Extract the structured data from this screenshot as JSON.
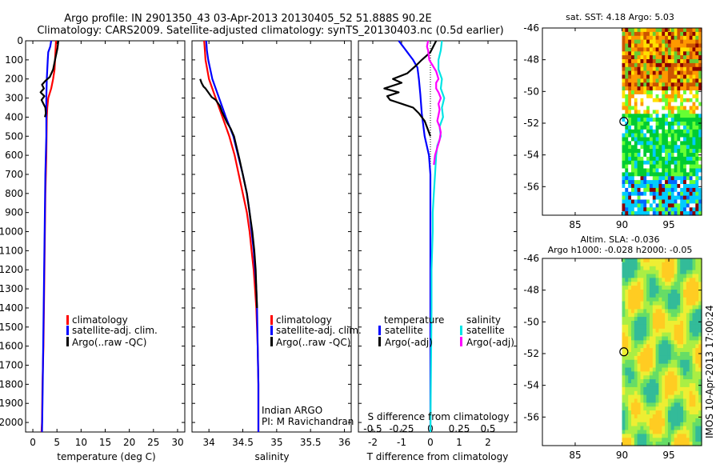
{
  "header": {
    "title_line1": "Argo profile: IN 2901350_43 03-Apr-2013 20130405_52 51.888S 90.2E",
    "title_line2": "Climatology: CARS2009. Satellite-adjusted climatology: synTS_20130403.nc (0.5d earlier)"
  },
  "colors": {
    "climatology": "#ff0000",
    "satellite": "#0000ff",
    "argo": "#000000",
    "salinity_satellite": "#00e5e5",
    "salinity_argo": "#ff00ff"
  },
  "chart_data": [
    {
      "type": "line",
      "id": "temperature",
      "xlabel": "temperature (deg C)",
      "xlim": [
        -1.5,
        31.5
      ],
      "xticks": [
        0,
        5,
        10,
        15,
        20,
        25,
        30
      ],
      "ylim": [
        0,
        2050
      ],
      "yticks": [
        0,
        100,
        200,
        300,
        400,
        500,
        600,
        700,
        800,
        900,
        1000,
        1100,
        1200,
        1300,
        1400,
        1500,
        1600,
        1700,
        1800,
        1900,
        2000
      ],
      "legend": [
        "climatology",
        "satellite-adj. clim.",
        "Argo(..raw -QC)"
      ],
      "series": [
        {
          "name": "climatology",
          "color": "#ff0000",
          "points": [
            [
              4.8,
              0
            ],
            [
              4.7,
              50
            ],
            [
              4.6,
              100
            ],
            [
              4.5,
              150
            ],
            [
              4.2,
              200
            ],
            [
              3.8,
              250
            ],
            [
              3.2,
              300
            ],
            [
              3.0,
              350
            ],
            [
              2.9,
              400
            ],
            [
              2.8,
              600
            ],
            [
              2.6,
              800
            ],
            [
              2.5,
              1000
            ],
            [
              2.4,
              1200
            ],
            [
              2.3,
              1400
            ],
            [
              2.2,
              1600
            ],
            [
              2.0,
              1800
            ],
            [
              1.9,
              2000
            ],
            [
              1.8,
              2050
            ]
          ]
        },
        {
          "name": "satellite-adj. clim.",
          "color": "#0000ff",
          "points": [
            [
              3.8,
              0
            ],
            [
              3.6,
              30
            ],
            [
              3.2,
              60
            ],
            [
              3.1,
              100
            ],
            [
              3.0,
              150
            ],
            [
              2.9,
              200
            ],
            [
              2.8,
              300
            ],
            [
              2.8,
              500
            ],
            [
              2.6,
              700
            ],
            [
              2.5,
              900
            ],
            [
              2.4,
              1100
            ],
            [
              2.3,
              1300
            ],
            [
              2.2,
              1500
            ],
            [
              2.1,
              1700
            ],
            [
              2.0,
              1900
            ],
            [
              1.9,
              2050
            ]
          ]
        },
        {
          "name": "Argo(..raw -QC)",
          "color": "#000000",
          "points": [
            [
              5.3,
              0
            ],
            [
              5.1,
              40
            ],
            [
              4.6,
              100
            ],
            [
              4.2,
              150
            ],
            [
              3.5,
              190
            ],
            [
              2.6,
              210
            ],
            [
              1.9,
              230
            ],
            [
              2.3,
              250
            ],
            [
              1.6,
              270
            ],
            [
              2.4,
              290
            ],
            [
              1.8,
              310
            ],
            [
              2.2,
              330
            ],
            [
              2.6,
              350
            ],
            [
              2.7,
              380
            ],
            [
              2.5,
              400
            ]
          ]
        }
      ]
    },
    {
      "type": "line",
      "id": "salinity",
      "xlabel": "salinity",
      "xlim": [
        33.75,
        36.1
      ],
      "xticks": [
        34,
        34.5,
        35,
        35.5,
        36
      ],
      "xtick_labels": [
        "34",
        "34.5",
        "35",
        "35.5",
        "36"
      ],
      "ylim": [
        0,
        2050
      ],
      "legend": [
        "climatology",
        "satellite-adj. clim.",
        "Argo(..raw -QC)"
      ],
      "annotation": [
        "Indian ARGO",
        "PI: M Ravichandran"
      ],
      "series": [
        {
          "name": "climatology",
          "color": "#ff0000",
          "points": [
            [
              33.93,
              0
            ],
            [
              33.94,
              50
            ],
            [
              33.95,
              100
            ],
            [
              34.0,
              200
            ],
            [
              34.1,
              300
            ],
            [
              34.2,
              400
            ],
            [
              34.3,
              500
            ],
            [
              34.38,
              600
            ],
            [
              34.44,
              700
            ],
            [
              34.5,
              800
            ],
            [
              34.56,
              900
            ],
            [
              34.6,
              1000
            ],
            [
              34.63,
              1100
            ],
            [
              34.66,
              1200
            ],
            [
              34.68,
              1300
            ],
            [
              34.7,
              1400
            ],
            [
              34.72,
              1600
            ],
            [
              34.73,
              1800
            ],
            [
              34.73,
              2050
            ]
          ]
        },
        {
          "name": "satellite-adj. clim.",
          "color": "#0000ff",
          "points": [
            [
              33.96,
              0
            ],
            [
              33.97,
              50
            ],
            [
              33.99,
              100
            ],
            [
              34.05,
              200
            ],
            [
              34.15,
              300
            ],
            [
              34.25,
              400
            ],
            [
              34.36,
              500
            ],
            [
              34.43,
              600
            ],
            [
              34.5,
              700
            ],
            [
              34.56,
              800
            ],
            [
              34.6,
              900
            ],
            [
              34.63,
              1000
            ],
            [
              34.66,
              1100
            ],
            [
              34.68,
              1200
            ],
            [
              34.7,
              1300
            ],
            [
              34.71,
              1400
            ],
            [
              34.72,
              1600
            ],
            [
              34.73,
              1800
            ],
            [
              34.73,
              2050
            ]
          ]
        },
        {
          "name": "Argo(..raw -QC)",
          "color": "#000000",
          "points": [
            [
              33.87,
              200
            ],
            [
              33.89,
              220
            ],
            [
              33.92,
              240
            ],
            [
              33.95,
              250
            ],
            [
              33.99,
              270
            ],
            [
              34.04,
              295
            ],
            [
              34.1,
              310
            ],
            [
              34.16,
              340
            ],
            [
              34.19,
              370
            ],
            [
              34.23,
              400
            ],
            [
              34.27,
              430
            ],
            [
              34.32,
              460
            ],
            [
              34.37,
              500
            ],
            [
              34.41,
              560
            ],
            [
              34.45,
              620
            ],
            [
              34.5,
              700
            ],
            [
              34.56,
              800
            ],
            [
              34.6,
              900
            ],
            [
              34.64,
              1000
            ],
            [
              34.67,
              1100
            ],
            [
              34.69,
              1200
            ],
            [
              34.7,
              1300
            ],
            [
              34.71,
              1400
            ]
          ]
        }
      ]
    },
    {
      "type": "line",
      "id": "difference",
      "xlabel": "T difference from climatology",
      "xlabel_top": "S difference from climatology",
      "xlim": [
        -2.5,
        3.0
      ],
      "xticks": [
        -2,
        -1,
        0,
        1,
        2
      ],
      "s_ticks": [
        -0.5,
        -0.25,
        0,
        0.25,
        0.5
      ],
      "s_tick_labels": [
        "-0.5",
        "-0.25",
        "0",
        "0.25",
        "0.5"
      ],
      "ylim": [
        0,
        2050
      ],
      "legend_headers": [
        "temperature",
        "salinity"
      ],
      "legend": [
        "satellite",
        "Argo(-adj)",
        "satellite",
        "Argo(-adj)"
      ],
      "series": [
        {
          "name": "T satellite",
          "color": "#0000ff",
          "points": [
            [
              -1.1,
              0
            ],
            [
              -1.0,
              20
            ],
            [
              -0.9,
              40
            ],
            [
              -0.8,
              60
            ],
            [
              -0.7,
              80
            ],
            [
              -0.6,
              100
            ],
            [
              -0.45,
              140
            ],
            [
              -0.4,
              200
            ],
            [
              -0.35,
              280
            ],
            [
              -0.3,
              380
            ],
            [
              -0.2,
              500
            ],
            [
              -0.05,
              600
            ],
            [
              0.0,
              700
            ],
            [
              0.0,
              900
            ],
            [
              0.0,
              2050
            ]
          ]
        },
        {
          "name": "T Argo(-adj)",
          "color": "#000000",
          "points": [
            [
              0.2,
              0
            ],
            [
              0.0,
              60
            ],
            [
              -0.3,
              100
            ],
            [
              -0.5,
              130
            ],
            [
              -0.8,
              170
            ],
            [
              -1.3,
              200
            ],
            [
              -1.0,
              220
            ],
            [
              -1.6,
              250
            ],
            [
              -1.1,
              270
            ],
            [
              -1.5,
              290
            ],
            [
              -1.4,
              310
            ],
            [
              -1.0,
              330
            ],
            [
              -0.6,
              350
            ],
            [
              -0.4,
              380
            ],
            [
              -0.2,
              420
            ],
            [
              -0.1,
              460
            ],
            [
              0.0,
              500
            ]
          ]
        },
        {
          "name": "S satellite",
          "color": "#00e5e5",
          "points": [
            [
              0.1,
              0
            ],
            [
              0.09,
              50
            ],
            [
              0.07,
              100
            ],
            [
              0.07,
              150
            ],
            [
              0.1,
              200
            ],
            [
              0.09,
              250
            ],
            [
              0.12,
              300
            ],
            [
              0.1,
              350
            ],
            [
              0.11,
              400
            ],
            [
              0.08,
              450
            ],
            [
              0.09,
              500
            ],
            [
              0.06,
              550
            ],
            [
              0.05,
              600
            ],
            [
              0.04,
              700
            ],
            [
              0.03,
              800
            ],
            [
              0.02,
              900
            ],
            [
              0.02,
              1000
            ],
            [
              0.01,
              1200
            ],
            [
              0.01,
              1400
            ],
            [
              0.0,
              2050
            ]
          ]
        },
        {
          "name": "S Argo(-adj)",
          "color": "#ff00ff",
          "points": [
            [
              -0.02,
              0
            ],
            [
              -0.03,
              30
            ],
            [
              -0.02,
              50
            ],
            [
              -0.01,
              100
            ],
            [
              0.02,
              130
            ],
            [
              0.05,
              160
            ],
            [
              0.07,
              200
            ],
            [
              0.05,
              220
            ],
            [
              0.05,
              250
            ],
            [
              0.07,
              270
            ],
            [
              0.09,
              300
            ],
            [
              0.07,
              330
            ],
            [
              0.08,
              360
            ],
            [
              0.07,
              390
            ],
            [
              0.06,
              420
            ],
            [
              0.08,
              450
            ],
            [
              0.09,
              480
            ],
            [
              0.08,
              520
            ],
            [
              0.06,
              560
            ],
            [
              0.04,
              600
            ],
            [
              0.03,
              650
            ]
          ]
        }
      ]
    }
  ],
  "maps": {
    "sst": {
      "title": "sat. SST: 4.18 Argo: 5.03",
      "xticks": [
        85,
        90,
        95
      ],
      "yticks": [
        -46,
        -48,
        -50,
        -52,
        -54,
        -56
      ],
      "lon_range": [
        81.5,
        98.5
      ],
      "lat_range": [
        -46,
        -57.8
      ],
      "data_from_lon": 90,
      "marker": [
        90.2,
        -51.888
      ]
    },
    "sla": {
      "title_line1": "Altim. SLA: -0.036",
      "title_line2": "Argo h1000: -0.028 h2000: -0.05",
      "xticks": [
        85,
        90,
        95
      ],
      "yticks": [
        -46,
        -48,
        -50,
        -52,
        -54,
        -56
      ],
      "lon_range": [
        81.5,
        98.5
      ],
      "lat_range": [
        -46,
        -57.8
      ],
      "data_from_lon": 90,
      "marker": [
        90.2,
        -51.888
      ]
    }
  },
  "credit": "IMOS 10-Apr-2013 17:00:24"
}
